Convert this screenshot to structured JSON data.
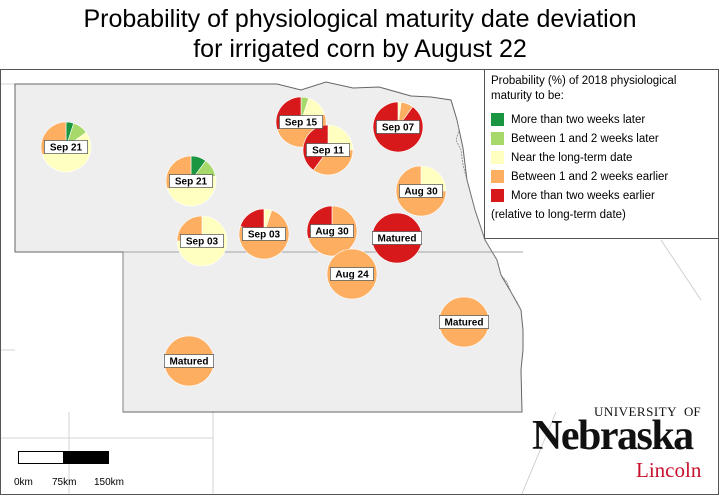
{
  "title": {
    "line1": "Probability of physiological maturity date deviation",
    "line2": "for irrigated corn by August 22"
  },
  "legend": {
    "title": "Probability (%) of 2018 physiological maturity to be:",
    "items": [
      {
        "label": "More than two weeks later",
        "color": "#1a9641"
      },
      {
        "label": "Between 1 and 2 weeks later",
        "color": "#a6d96a"
      },
      {
        "label": "Near the long-term date",
        "color": "#ffffc0"
      },
      {
        "label": "Between 1 and 2 weeks earlier",
        "color": "#fdae61"
      },
      {
        "label": "More than two weeks earlier",
        "color": "#d7191c"
      }
    ],
    "note": "(relative to long-term date)"
  },
  "sites": [
    {
      "label": "Sep 21",
      "probs": [
        5,
        10,
        55,
        30,
        0
      ]
    },
    {
      "label": "Sep 21",
      "probs": [
        10,
        12,
        48,
        30,
        0
      ]
    },
    {
      "label": "Sep 15",
      "probs": [
        0,
        5,
        15,
        50,
        30
      ]
    },
    {
      "label": "Sep 11",
      "probs": [
        0,
        0,
        25,
        35,
        40
      ]
    },
    {
      "label": "Sep 07",
      "probs": [
        0,
        0,
        2,
        8,
        90
      ]
    },
    {
      "label": "Sep 03",
      "probs": [
        0,
        0,
        75,
        25,
        0
      ]
    },
    {
      "label": "Sep 03",
      "probs": [
        0,
        0,
        5,
        75,
        20
      ]
    },
    {
      "label": "Aug 30",
      "probs": [
        0,
        0,
        0,
        70,
        30
      ]
    },
    {
      "label": "Aug 30",
      "probs": [
        0,
        0,
        25,
        75,
        0
      ]
    },
    {
      "label": "Matured",
      "probs": [
        0,
        0,
        0,
        0,
        100
      ]
    },
    {
      "label": "Aug 24",
      "probs": [
        0,
        0,
        0,
        100,
        0
      ]
    },
    {
      "label": "Matured",
      "probs": [
        0,
        0,
        0,
        100,
        0
      ]
    },
    {
      "label": "Matured",
      "probs": [
        0,
        0,
        0,
        100,
        0
      ]
    }
  ],
  "scalebar": {
    "labels": [
      "0km",
      "75km",
      "150km"
    ]
  },
  "logo": {
    "university": "UNIVERSITY",
    "of": "OF",
    "name": "Nebraska",
    "campus": "Lincoln"
  }
}
